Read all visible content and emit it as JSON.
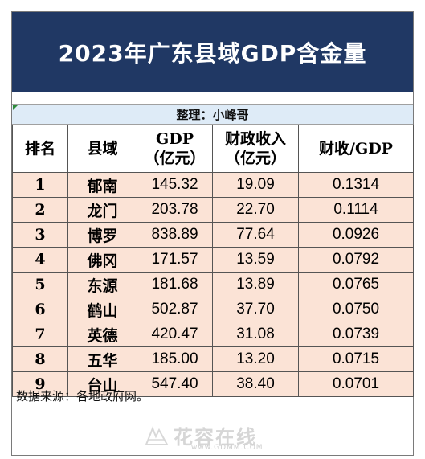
{
  "title": "2023年广东县域GDP含金量",
  "credit": "整理：小峰哥",
  "headers": {
    "rank": "排名",
    "county": "县域",
    "gdp_line1": "GDP",
    "gdp_line2": "（亿元）",
    "revenue_line1": "财政收入",
    "revenue_line2": "（亿元）",
    "ratio": "财收/GDP"
  },
  "rows": [
    {
      "rank": "1",
      "county": "郁南",
      "gdp": "145.32",
      "revenue": "19.09",
      "ratio": "0.1314"
    },
    {
      "rank": "2",
      "county": "龙门",
      "gdp": "203.78",
      "revenue": "22.70",
      "ratio": "0.1114"
    },
    {
      "rank": "3",
      "county": "博罗",
      "gdp": "838.89",
      "revenue": "77.64",
      "ratio": "0.0926"
    },
    {
      "rank": "4",
      "county": "佛冈",
      "gdp": "171.57",
      "revenue": "13.59",
      "ratio": "0.0792"
    },
    {
      "rank": "5",
      "county": "东源",
      "gdp": "181.68",
      "revenue": "13.89",
      "ratio": "0.0765"
    },
    {
      "rank": "6",
      "county": "鹤山",
      "gdp": "502.87",
      "revenue": "37.70",
      "ratio": "0.0750"
    },
    {
      "rank": "7",
      "county": "英德",
      "gdp": "420.47",
      "revenue": "31.08",
      "ratio": "0.0739"
    },
    {
      "rank": "8",
      "county": "五华",
      "gdp": "185.00",
      "revenue": "13.20",
      "ratio": "0.0715"
    },
    {
      "rank": "9",
      "county": "台山",
      "gdp": "547.40",
      "revenue": "38.40",
      "ratio": "0.0701"
    }
  ],
  "source_note": "数据来源：各地政府网。",
  "watermark": {
    "text": "花容在线",
    "url": "www.GDMM.COM"
  },
  "colors": {
    "title_bg": "#203864",
    "credit_bg": "#deebf7",
    "row_bg": "#fbe3d6"
  }
}
